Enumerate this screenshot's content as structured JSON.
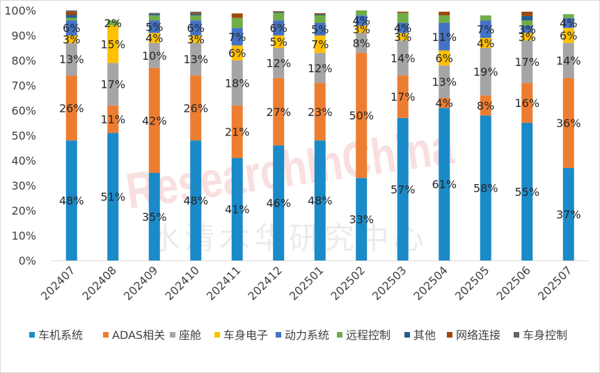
{
  "chart_data": {
    "type": "bar",
    "stacked": true,
    "percent": true,
    "ylim": [
      0,
      100
    ],
    "y_ticks": [
      "0%",
      "10%",
      "20%",
      "30%",
      "40%",
      "50%",
      "60%",
      "70%",
      "80%",
      "90%",
      "100%"
    ],
    "categories": [
      "202407",
      "202408",
      "202409",
      "202410",
      "202411",
      "202412",
      "202501",
      "202502",
      "202503",
      "202504",
      "202505",
      "202506",
      "202507"
    ],
    "series": [
      {
        "name": "车机系统",
        "color": "#1a8ac8",
        "values": [
          48,
          51,
          35,
          48,
          41,
          46,
          48,
          33,
          57,
          61,
          58,
          55,
          37
        ],
        "labels": [
          "48%",
          "51%",
          "35%",
          "48%",
          "41%",
          "46%",
          "48%",
          "33%",
          "57%",
          "61%",
          "58%",
          "55%",
          "37%"
        ]
      },
      {
        "name": "ADAS相关",
        "color": "#ed7d31",
        "values": [
          26,
          11,
          42,
          26,
          21,
          27,
          23,
          50,
          17,
          4,
          8,
          16,
          36
        ],
        "labels": [
          "26%",
          "11%",
          "42%",
          "26%",
          "21%",
          "27%",
          "23%",
          "50%",
          "17%",
          "4%",
          "8%",
          "16%",
          "36%"
        ]
      },
      {
        "name": "座舱",
        "color": "#a5a5a5",
        "values": [
          13,
          17,
          10,
          13,
          18,
          12,
          12,
          8,
          14,
          13,
          19,
          17,
          14
        ],
        "labels": [
          "13%",
          "17%",
          "10%",
          "13%",
          "18%",
          "12%",
          "12%",
          "8%",
          "14%",
          "13%",
          "19%",
          "17%",
          "14%"
        ]
      },
      {
        "name": "车身电子",
        "color": "#ffc000",
        "values": [
          3,
          15,
          4,
          3,
          6,
          5,
          7,
          3,
          3,
          6,
          4,
          3,
          6
        ],
        "labels": [
          "3%",
          "15%",
          "4%",
          "3%",
          "6%",
          "5%",
          "7%",
          "3%",
          "3%",
          "6%",
          "4%",
          "3%",
          "6%"
        ]
      },
      {
        "name": "动力系统",
        "color": "#4472c4",
        "values": [
          6,
          0,
          5,
          6,
          7,
          6,
          5,
          4,
          4,
          11,
          7,
          3,
          4
        ],
        "labels": [
          "6%",
          "",
          "5%",
          "6%",
          "7%",
          "6%",
          "5%",
          "4%",
          "4%",
          "11%",
          "7%",
          "3%",
          "4%"
        ]
      },
      {
        "name": "远程控制",
        "color": "#70ad47",
        "values": [
          1,
          2,
          2,
          2,
          4,
          3,
          3,
          2,
          4,
          3,
          2,
          2,
          1.5
        ],
        "labels": [
          "",
          "2%",
          "",
          "",
          "",
          "",
          "",
          "",
          "",
          "",
          "",
          "",
          ""
        ]
      },
      {
        "name": "其他",
        "color": "#255e91",
        "values": [
          1.2,
          0,
          0.5,
          0.5,
          0,
          0.4,
          0.4,
          0,
          0,
          0,
          0,
          1.8,
          0
        ],
        "labels": [
          "",
          "",
          "",
          "",
          "",
          "",
          "",
          "",
          "",
          "",
          "",
          "",
          ""
        ]
      },
      {
        "name": "网络连接",
        "color": "#9e480e",
        "values": [
          1.3,
          0,
          0,
          0.5,
          1.8,
          0.3,
          0.5,
          0,
          0.5,
          1.5,
          0,
          1.7,
          0
        ],
        "labels": [
          "",
          "",
          "",
          "",
          "",
          "",
          "",
          "",
          "",
          "",
          "",
          "",
          ""
        ]
      },
      {
        "name": "车身控制",
        "color": "#636363",
        "values": [
          0.5,
          0,
          0.5,
          0.5,
          0,
          0,
          0,
          0,
          0,
          0,
          0,
          0,
          0
        ],
        "labels": [
          "",
          "",
          "",
          "",
          "",
          "",
          "",
          "",
          "",
          "",
          "",
          "",
          ""
        ]
      }
    ],
    "legend": "bottom",
    "grid": false
  },
  "watermark": {
    "text_en": "ResearchInChina",
    "text_cn": "水清木华研究中心"
  }
}
